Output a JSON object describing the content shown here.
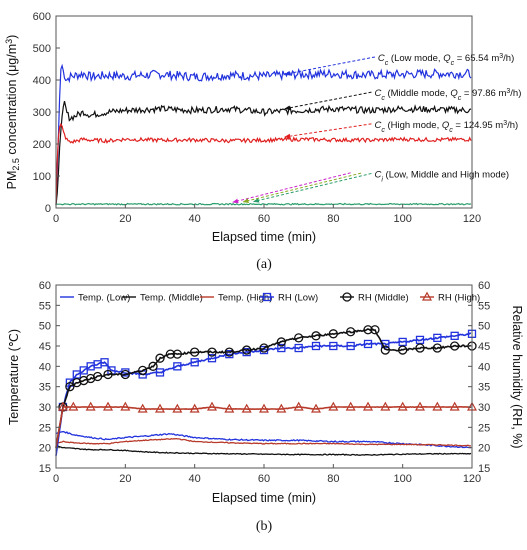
{
  "chart_data": [
    {
      "type": "line",
      "panel_label": "(a)",
      "xlabel": "Elapsed time (min)",
      "ylabel": "PM2.5 concentration (μg/m³)",
      "ylabel_parts": {
        "pre": "PM",
        "sub": "2.5",
        "post": " concentration (μg/m",
        "sup": "3",
        "end": ")"
      },
      "xlim": [
        0,
        120
      ],
      "ylim": [
        0,
        600
      ],
      "xticks": [
        0,
        20,
        40,
        60,
        80,
        100,
        120
      ],
      "yticks": [
        0,
        100,
        200,
        300,
        400,
        500,
        600
      ],
      "grid": false,
      "series": [
        {
          "key": "low",
          "color": "#2233dd",
          "x": [
            0,
            0.5,
            1,
            1.5,
            2,
            3,
            4,
            6,
            8,
            10,
            15,
            20,
            30,
            40,
            50,
            60,
            70,
            80,
            90,
            100,
            110,
            120
          ],
          "y": [
            10,
            150,
            330,
            460,
            430,
            400,
            410,
            415,
            420,
            410,
            415,
            412,
            418,
            410,
            415,
            412,
            418,
            420,
            415,
            418,
            420,
            420
          ],
          "noise": 14
        },
        {
          "key": "middle",
          "color": "#111111",
          "x": [
            0,
            0.5,
            1,
            1.5,
            2,
            2.5,
            3,
            4,
            6,
            8,
            10,
            15,
            20,
            30,
            40,
            50,
            60,
            70,
            80,
            90,
            100,
            110,
            120
          ],
          "y": [
            10,
            60,
            180,
            260,
            300,
            330,
            300,
            280,
            290,
            300,
            290,
            300,
            305,
            310,
            305,
            310,
            300,
            305,
            310,
            305,
            310,
            308,
            305
          ],
          "noise": 10
        },
        {
          "key": "high",
          "color": "#e02020",
          "x": [
            0,
            0.5,
            1,
            1.5,
            2,
            3,
            4,
            6,
            8,
            10,
            15,
            20,
            30,
            40,
            50,
            60,
            70,
            80,
            90,
            100,
            110,
            120
          ],
          "y": [
            10,
            200,
            250,
            265,
            240,
            215,
            205,
            210,
            215,
            212,
            210,
            215,
            212,
            213,
            210,
            212,
            215,
            213,
            212,
            215,
            213,
            215
          ],
          "noise": 6
        },
        {
          "key": "ci",
          "color": "#2a9d6a",
          "x": [
            0,
            20,
            40,
            60,
            80,
            100,
            120
          ],
          "y": [
            12,
            12,
            12,
            12,
            12,
            12,
            12
          ],
          "noise": 2
        }
      ],
      "annotations": [
        {
          "key": "low",
          "color": "#2233dd",
          "parts": [
            {
              "t": "C",
              "i": true
            },
            {
              "t": "c",
              "sub": true,
              "i": true
            },
            {
              "t": " (Low mode, "
            },
            {
              "t": "Q",
              "i": true
            },
            {
              "t": "c",
              "sub": true,
              "i": true
            },
            {
              "t": " = 65.54 m"
            },
            {
              "t": "3",
              "sup": true
            },
            {
              "t": "/h)"
            }
          ],
          "from": [
            66,
            418
          ],
          "to": [
            92,
            472
          ]
        },
        {
          "key": "middle",
          "color": "#111111",
          "parts": [
            {
              "t": "C",
              "i": true
            },
            {
              "t": "c",
              "sub": true,
              "i": true
            },
            {
              "t": " (Middle mode, "
            },
            {
              "t": "Q",
              "i": true
            },
            {
              "t": "c",
              "sub": true,
              "i": true
            },
            {
              "t": " = 97.86 m"
            },
            {
              "t": "3",
              "sup": true
            },
            {
              "t": "/h)"
            }
          ],
          "from": [
            66,
            310
          ],
          "to": [
            91,
            362
          ]
        },
        {
          "key": "high",
          "color": "#e02020",
          "parts": [
            {
              "t": "C",
              "i": true
            },
            {
              "t": "c",
              "sub": true,
              "i": true
            },
            {
              "t": " (High mode, "
            },
            {
              "t": "Q",
              "i": true
            },
            {
              "t": "c",
              "sub": true,
              "i": true
            },
            {
              "t": " = 124.95 m"
            },
            {
              "t": "3",
              "sup": true
            },
            {
              "t": "/h)"
            }
          ],
          "from": [
            66,
            222
          ],
          "to": [
            91,
            263
          ]
        },
        {
          "key": "ci",
          "color": "#2a9d6a",
          "parts": [
            {
              "t": "C",
              "i": true
            },
            {
              "t": "i",
              "sub": true,
              "i": true
            },
            {
              "t": " (Low, Middle and High mode)"
            }
          ],
          "from": [
            57,
            20
          ],
          "to": [
            91,
            108
          ],
          "extra_arrows": [
            {
              "color": "#cc22cc",
              "from": [
                51,
                18
              ],
              "to": [
                85,
                110
              ]
            },
            {
              "color": "#88aa22",
              "from": [
                54,
                19
              ],
              "to": [
                88,
                109
              ]
            }
          ]
        }
      ]
    },
    {
      "type": "line",
      "panel_label": "(b)",
      "xlabel": "Elapsed time (min)",
      "ylabel": "Temperature (℃)",
      "y2label": "Relative humidity (RH, %)",
      "xlim": [
        0,
        120
      ],
      "ylim": [
        15,
        60
      ],
      "y2lim": [
        15,
        60
      ],
      "xticks": [
        0,
        20,
        40,
        60,
        80,
        100,
        120
      ],
      "yticks": [
        15,
        20,
        25,
        30,
        35,
        40,
        45,
        50,
        55,
        60
      ],
      "y2ticks": [
        15,
        20,
        25,
        30,
        35,
        40,
        45,
        50,
        55,
        60
      ],
      "grid": false,
      "legend": {
        "placement": "top",
        "items": [
          {
            "label": "Temp. (Low)",
            "color": "#2233dd",
            "marker": "none"
          },
          {
            "label": "Temp. (Middle)",
            "color": "#111111",
            "marker": "none"
          },
          {
            "label": "Temp. (High)",
            "color": "#b83a2a",
            "marker": "none"
          },
          {
            "label": "RH (Low)",
            "color": "#2233dd",
            "marker": "square"
          },
          {
            "label": "RH (Middle)",
            "color": "#111111",
            "marker": "circle"
          },
          {
            "label": "RH (High)",
            "color": "#b83a2a",
            "marker": "triangle"
          }
        ]
      },
      "series": [
        {
          "name": "Temp. (Low)",
          "axis": "left",
          "color": "#2233dd",
          "marker": "none",
          "noise": 0.15,
          "x": [
            0,
            2,
            5,
            10,
            15,
            20,
            25,
            30,
            33,
            40,
            50,
            60,
            70,
            80,
            90,
            100,
            110,
            120
          ],
          "y": [
            23.5,
            24,
            23.2,
            22.5,
            22,
            22.5,
            22.8,
            23.2,
            23.4,
            22.5,
            22,
            21.8,
            21.8,
            21.5,
            21.5,
            21,
            20.5,
            20
          ]
        },
        {
          "name": "Temp. (Middle)",
          "axis": "left",
          "color": "#111111",
          "marker": "none",
          "noise": 0.1,
          "x": [
            0,
            2,
            5,
            10,
            15,
            20,
            25,
            30,
            40,
            50,
            60,
            70,
            80,
            90,
            100,
            110,
            120
          ],
          "y": [
            20.5,
            20,
            19.8,
            19.5,
            19.5,
            19.3,
            19,
            18.8,
            18.6,
            18.5,
            18.4,
            18.3,
            18.3,
            18.2,
            18.4,
            18.5,
            18.5
          ]
        },
        {
          "name": "Temp. (High)",
          "axis": "left",
          "color": "#b83a2a",
          "marker": "none",
          "noise": 0.1,
          "x": [
            0,
            2,
            5,
            10,
            15,
            20,
            25,
            30,
            35,
            40,
            50,
            60,
            70,
            80,
            90,
            100,
            110,
            120
          ],
          "y": [
            21,
            21.5,
            21.2,
            21,
            21,
            21.5,
            21.8,
            22,
            22.2,
            21.5,
            21.2,
            21,
            21,
            21,
            20.8,
            20.8,
            20.7,
            20.5
          ]
        },
        {
          "name": "RH (Low)",
          "axis": "right",
          "color": "#2233dd",
          "marker": "square",
          "noise": 0.2,
          "x": [
            0,
            2,
            4,
            6,
            8,
            10,
            12,
            14,
            16,
            20,
            25,
            30,
            35,
            40,
            45,
            50,
            55,
            60,
            65,
            70,
            75,
            80,
            85,
            90,
            95,
            100,
            105,
            110,
            115,
            120
          ],
          "y": [
            18,
            30,
            36,
            38,
            39,
            40,
            40.5,
            41,
            39,
            38.5,
            38,
            38.5,
            40,
            41,
            42,
            43,
            43.5,
            44,
            44.5,
            44.5,
            45,
            45,
            45,
            45.5,
            45.5,
            46,
            46.5,
            47,
            47.5,
            48
          ]
        },
        {
          "name": "RH (Middle)",
          "axis": "right",
          "color": "#111111",
          "marker": "circle",
          "noise": 0.2,
          "x": [
            0,
            2,
            4,
            6,
            8,
            10,
            12,
            15,
            20,
            25,
            28,
            30,
            33,
            35,
            40,
            45,
            50,
            55,
            60,
            65,
            70,
            75,
            80,
            85,
            90,
            92,
            95,
            100,
            105,
            110,
            115,
            120
          ],
          "y": [
            20,
            30,
            35,
            36,
            36.5,
            37,
            37.5,
            38,
            38,
            39,
            40,
            42,
            43,
            43,
            43.5,
            43.5,
            43.5,
            44,
            44.5,
            46,
            47,
            47.5,
            48,
            48.5,
            49,
            49,
            44,
            44,
            44.5,
            44.5,
            45,
            45
          ]
        },
        {
          "name": "RH (High)",
          "axis": "right",
          "color": "#b83a2a",
          "marker": "triangle",
          "noise": 0.05,
          "x": [
            0,
            2,
            5,
            10,
            15,
            20,
            25,
            30,
            35,
            40,
            45,
            50,
            55,
            60,
            65,
            70,
            75,
            80,
            85,
            90,
            95,
            100,
            105,
            110,
            115,
            120
          ],
          "y": [
            20,
            30,
            30,
            30,
            30,
            30,
            29.5,
            29.5,
            29.5,
            29.5,
            30,
            29.5,
            29.5,
            29.5,
            29.5,
            30,
            29.5,
            30,
            30,
            30,
            30,
            30,
            30,
            30,
            30,
            30
          ]
        }
      ]
    }
  ]
}
